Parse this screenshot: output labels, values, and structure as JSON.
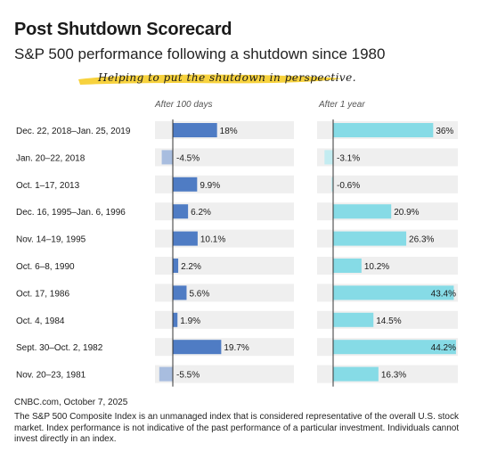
{
  "header": {
    "title": "Post Shutdown Scorecard",
    "subtitle": "S&P 500 performance following a shutdown since 1980",
    "tagline": "Helping to put the shutdown in perspective."
  },
  "chart_data": {
    "type": "bar",
    "orientation": "horizontal",
    "categories": [
      "Dec. 22, 2018–Jan. 25, 2019",
      "Jan. 20–22, 2018",
      "Oct. 1–17, 2013",
      "Dec. 16, 1995–Jan. 6, 1996",
      "Nov. 14–19, 1995",
      "Oct. 6–8, 1990",
      "Oct. 17, 1986",
      "Oct. 4, 1984",
      "Sept. 30–Oct. 2, 1982",
      "Nov. 20–23, 1981"
    ],
    "series": [
      {
        "name": "After 100 days",
        "values": [
          18,
          -4.5,
          9.9,
          6.2,
          10.1,
          2.2,
          5.6,
          1.9,
          19.7,
          -5.5
        ],
        "labels": [
          "18%",
          "-4.5%",
          "9.9%",
          "6.2%",
          "10.1%",
          "2.2%",
          "5.6%",
          "1.9%",
          "19.7%",
          "-5.5%"
        ],
        "color": "#4f7cc4",
        "negative_color": "#a8bddf"
      },
      {
        "name": "After 1 year",
        "values": [
          36,
          -3.1,
          -0.6,
          20.9,
          26.3,
          10.2,
          43.4,
          14.5,
          44.2,
          16.3
        ],
        "labels": [
          "36%",
          "-3.1%",
          "-0.6%",
          "20.9%",
          "26.3%",
          "10.2%",
          "43.4%",
          "14.5%",
          "44.2%",
          "16.3%"
        ],
        "color": "#86dbe6",
        "negative_color": "#c3ecf1"
      }
    ],
    "colors": {
      "track": "#efefef",
      "axis": "#333333",
      "tagline_highlight": "#f7d23e"
    }
  },
  "footer": {
    "source": "CNBC.com, October 7, 2025",
    "disclaimer": "The S&P 500 Composite Index is an unmanaged index that is considered representative of the overall U.S. stock market. Index performance is not indicative of the past performance of a particular investment. Individuals cannot invest directly in an index."
  }
}
